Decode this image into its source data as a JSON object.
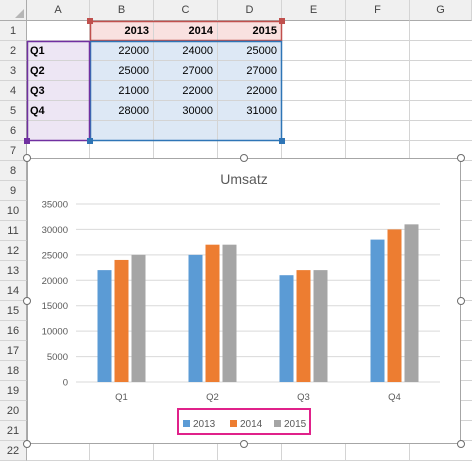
{
  "columns": [
    "A",
    "B",
    "C",
    "D",
    "E",
    "F",
    "G"
  ],
  "rows": [
    "1",
    "2",
    "3",
    "4",
    "5",
    "6",
    "7",
    "8",
    "9",
    "10",
    "11",
    "12",
    "13",
    "14",
    "15",
    "16",
    "17",
    "18",
    "19",
    "20",
    "21",
    "22"
  ],
  "table": {
    "header": [
      "2013",
      "2014",
      "2015"
    ],
    "rows": [
      {
        "label": "Q1",
        "values": [
          "22000",
          "24000",
          "25000"
        ]
      },
      {
        "label": "Q2",
        "values": [
          "25000",
          "27000",
          "27000"
        ]
      },
      {
        "label": "Q3",
        "values": [
          "21000",
          "22000",
          "22000"
        ]
      },
      {
        "label": "Q4",
        "values": [
          "28000",
          "30000",
          "31000"
        ]
      }
    ]
  },
  "colors": {
    "series_2013": "#5b9bd5",
    "series_2014": "#ed7d31",
    "series_2015": "#a5a5a5",
    "range_purple": "#7030a0",
    "range_red": "#c0504d",
    "range_blue": "#2e75b6",
    "legend_highlight": "#e0218a"
  },
  "chart_data": {
    "type": "bar",
    "title": "Umsatz",
    "categories": [
      "Q1",
      "Q2",
      "Q3",
      "Q4"
    ],
    "series": [
      {
        "name": "2013",
        "values": [
          22000,
          25000,
          21000,
          28000
        ]
      },
      {
        "name": "2014",
        "values": [
          24000,
          27000,
          22000,
          30000
        ]
      },
      {
        "name": "2015",
        "values": [
          25000,
          27000,
          22000,
          31000
        ]
      }
    ],
    "ylim": [
      0,
      35000
    ],
    "yticks": [
      0,
      5000,
      10000,
      15000,
      20000,
      25000,
      30000,
      35000
    ],
    "grid": true,
    "legend": "bottom"
  }
}
